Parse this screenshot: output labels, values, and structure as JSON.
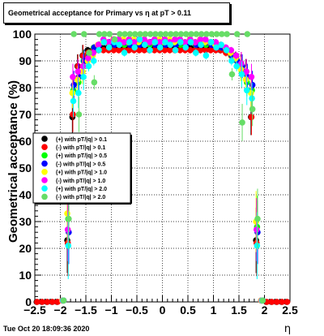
{
  "title_box": {
    "text": "Geometrical acceptance for Primary vs   η  at pT > 0.11"
  },
  "footer": {
    "timestamp": "Tue Oct 20 18:09:36 2020"
  },
  "chart_data": {
    "type": "scatter",
    "xlabel": "η",
    "ylabel": "Geometrical acceptance (%)",
    "xlim": [
      -2.5,
      2.5
    ],
    "ylim": [
      0,
      100
    ],
    "xticks": [
      "−2.5",
      "−2",
      "−1.5",
      "−1",
      "−0.5",
      "0",
      "0.5",
      "1",
      "1.5",
      "2",
      "2.5"
    ],
    "yticks": [
      "0",
      "10",
      "20",
      "30",
      "40",
      "50",
      "60",
      "70",
      "80",
      "90",
      "100"
    ],
    "grid": true,
    "legend_position": "left-middle",
    "series": [
      {
        "name": "(+) with pT/|q| > 0.1",
        "color": "#000000",
        "x": [
          -2.45,
          -2.35,
          -2.25,
          -2.15,
          -2.05,
          -1.95,
          -1.85,
          -1.75,
          -1.65,
          -1.55,
          -1.45,
          -1.35,
          -1.25,
          -1.15,
          -1.05,
          -0.95,
          -0.85,
          -0.75,
          -0.65,
          -0.55,
          -0.45,
          -0.35,
          -0.25,
          -0.15,
          -0.05,
          0.05,
          0.15,
          0.25,
          0.35,
          0.45,
          0.55,
          0.65,
          0.75,
          0.85,
          0.95,
          1.05,
          1.15,
          1.25,
          1.35,
          1.45,
          1.55,
          1.65,
          1.75,
          1.85,
          1.95,
          2.05,
          2.15,
          2.25,
          2.35,
          2.45
        ],
        "y": [
          0,
          0,
          0,
          0,
          0,
          0.5,
          23,
          69,
          88,
          92,
          94,
          94,
          95,
          95,
          95,
          95,
          95,
          95,
          95,
          95,
          95,
          95,
          95,
          95,
          95,
          95,
          95,
          95,
          95,
          95,
          95,
          95,
          95,
          95,
          95,
          95,
          94,
          94,
          93,
          92,
          88,
          86,
          69,
          23,
          0.5,
          0,
          0,
          0,
          0,
          0
        ]
      },
      {
        "name": "(-) with pT/|q| > 0.1",
        "color": "#ff0000",
        "x": [
          -2.45,
          -2.35,
          -2.25,
          -2.15,
          -2.05,
          -1.95,
          -1.85,
          -1.75,
          -1.65,
          -1.55,
          -1.45,
          -1.35,
          -1.25,
          -1.15,
          -1.05,
          -0.95,
          -0.85,
          -0.75,
          -0.65,
          -0.55,
          -0.45,
          -0.35,
          -0.25,
          -0.15,
          -0.05,
          0.05,
          0.15,
          0.25,
          0.35,
          0.45,
          0.55,
          0.65,
          0.75,
          0.85,
          0.95,
          1.05,
          1.15,
          1.25,
          1.35,
          1.45,
          1.55,
          1.65,
          1.75,
          1.85,
          1.95,
          2.05,
          2.15,
          2.25,
          2.35,
          2.45
        ],
        "y": [
          0,
          0,
          0,
          0,
          0,
          0.5,
          22,
          70,
          88,
          92,
          93,
          94,
          94,
          94,
          94,
          94,
          94,
          94,
          94,
          94,
          94,
          94,
          94,
          94,
          94,
          94,
          94,
          94,
          94,
          94,
          94,
          94,
          94,
          94,
          94,
          94,
          94,
          93,
          92,
          91,
          89,
          86,
          69,
          22,
          0.5,
          0,
          0,
          0,
          0,
          0
        ]
      },
      {
        "name": "(+) with pT/|q| > 0.5",
        "color": "#00ff00",
        "x": [
          -1.95,
          -1.85,
          -1.75,
          -1.65,
          -1.55,
          -1.45,
          -1.35,
          -1.25,
          -1.15,
          -1.05,
          -0.95,
          -0.85,
          -0.75,
          -0.65,
          -0.55,
          -0.45,
          -0.35,
          -0.25,
          -0.15,
          -0.05,
          0.05,
          0.15,
          0.25,
          0.35,
          0.45,
          0.55,
          0.65,
          0.75,
          0.85,
          0.95,
          1.05,
          1.15,
          1.25,
          1.35,
          1.45,
          1.55,
          1.65,
          1.75,
          1.85,
          1.95
        ],
        "y": [
          0.5,
          31,
          79,
          82,
          90,
          92,
          95,
          96,
          97,
          97,
          97,
          97,
          96,
          97,
          96,
          97,
          97,
          96,
          97,
          96,
          97,
          96,
          97,
          96,
          96,
          97,
          96,
          97,
          96,
          97,
          96,
          95,
          94,
          92,
          90,
          86,
          82,
          79,
          28,
          0.5
        ]
      },
      {
        "name": "(-) with pT/|q| > 0.5",
        "color": "#0000ff",
        "x": [
          -1.95,
          -1.85,
          -1.75,
          -1.65,
          -1.55,
          -1.45,
          -1.35,
          -1.25,
          -1.15,
          -1.05,
          -0.95,
          -0.85,
          -0.75,
          -0.65,
          -0.55,
          -0.45,
          -0.35,
          -0.25,
          -0.15,
          -0.05,
          0.05,
          0.15,
          0.25,
          0.35,
          0.45,
          0.55,
          0.65,
          0.75,
          0.85,
          0.95,
          1.05,
          1.15,
          1.25,
          1.35,
          1.45,
          1.55,
          1.65,
          1.75,
          1.85,
          1.95
        ],
        "y": [
          0.5,
          26,
          81,
          84,
          90,
          92,
          95,
          96,
          97,
          97,
          96,
          97,
          97,
          96,
          97,
          96,
          97,
          97,
          96,
          97,
          96,
          97,
          96,
          97,
          96,
          97,
          96,
          96,
          97,
          96,
          95,
          95,
          94,
          92,
          90,
          88,
          84,
          81,
          26,
          0.5
        ]
      },
      {
        "name": "(+) with pT/|q| > 1.0",
        "color": "#ffff00",
        "x": [
          -1.95,
          -1.85,
          -1.75,
          -1.65,
          -1.55,
          -1.45,
          -1.35,
          -1.25,
          -1.15,
          -1.05,
          -0.95,
          -0.85,
          -0.75,
          -0.65,
          -0.55,
          -0.45,
          -0.35,
          -0.25,
          -0.15,
          -0.05,
          0.05,
          0.15,
          0.25,
          0.35,
          0.45,
          0.55,
          0.65,
          0.75,
          0.85,
          0.95,
          1.05,
          1.15,
          1.25,
          1.35,
          1.45,
          1.55,
          1.65,
          1.75,
          1.85,
          1.95
        ],
        "y": [
          0.5,
          33,
          78,
          83,
          86,
          90,
          92,
          96,
          97,
          97,
          98,
          97,
          98,
          97,
          98,
          97,
          98,
          97,
          97,
          98,
          97,
          98,
          97,
          98,
          97,
          98,
          97,
          98,
          97,
          97,
          96,
          96,
          95,
          93,
          91,
          87,
          83,
          78,
          30,
          0.5
        ]
      },
      {
        "name": "(-) with pT/|q| > 1.0",
        "color": "#ff00ff",
        "x": [
          -1.95,
          -1.85,
          -1.75,
          -1.65,
          -1.55,
          -1.45,
          -1.35,
          -1.25,
          -1.15,
          -1.05,
          -0.95,
          -0.85,
          -0.75,
          -0.65,
          -0.55,
          -0.45,
          -0.35,
          -0.25,
          -0.15,
          -0.05,
          0.05,
          0.15,
          0.25,
          0.35,
          0.45,
          0.55,
          0.65,
          0.75,
          0.85,
          0.95,
          1.05,
          1.15,
          1.25,
          1.35,
          1.45,
          1.55,
          1.65,
          1.75,
          1.85,
          1.95
        ],
        "y": [
          0.5,
          27,
          84,
          86,
          88,
          91,
          93,
          96,
          98,
          97,
          98,
          98,
          97,
          98,
          97,
          98,
          98,
          97,
          98,
          97,
          98,
          97,
          98,
          98,
          97,
          98,
          97,
          98,
          98,
          97,
          97,
          96,
          95,
          94,
          92,
          89,
          86,
          84,
          27,
          0.5
        ]
      },
      {
        "name": "(+) with pT/|q| > 2.0",
        "color": "#00ffff",
        "x": [
          -1.95,
          -1.85,
          -1.75,
          -1.65,
          -1.55,
          -1.45,
          -1.35,
          -1.25,
          -1.15,
          -1.05,
          -0.95,
          -0.85,
          -0.75,
          -0.65,
          -0.55,
          -0.45,
          -0.35,
          -0.25,
          -0.15,
          -0.05,
          0.05,
          0.15,
          0.25,
          0.35,
          0.45,
          0.55,
          0.65,
          0.75,
          0.85,
          0.95,
          1.05,
          1.15,
          1.25,
          1.35,
          1.45,
          1.55,
          1.65,
          1.75,
          1.85,
          1.95
        ],
        "y": [
          0.5,
          21,
          75,
          78,
          84,
          88,
          90,
          94,
          97,
          95,
          97,
          96,
          93,
          97,
          95,
          98,
          96,
          94,
          97,
          95,
          97,
          96,
          94,
          97,
          95,
          97,
          93,
          96,
          92,
          97,
          95,
          96,
          94,
          90,
          88,
          85,
          79,
          76,
          21,
          0.5
        ]
      },
      {
        "name": "(-) with pT/|q| > 2.0",
        "color": "#66dd66",
        "x": [
          -1.95,
          -1.85,
          -1.75,
          -1.65,
          -1.55,
          -1.45,
          -1.35,
          -1.25,
          -1.15,
          -1.05,
          -0.95,
          -0.85,
          -0.75,
          -0.65,
          -0.55,
          -0.45,
          -0.35,
          -0.25,
          -0.15,
          -0.05,
          0.05,
          0.15,
          0.25,
          0.35,
          0.45,
          0.55,
          0.65,
          0.75,
          0.85,
          0.95,
          1.05,
          1.15,
          1.25,
          1.35,
          1.45,
          1.55,
          1.65,
          1.75,
          1.85,
          1.95
        ],
        "y": [
          0.5,
          31,
          100,
          70,
          100,
          93,
          82,
          100,
          100,
          100,
          98,
          100,
          100,
          100,
          100,
          100,
          100,
          100,
          100,
          100,
          100,
          100,
          100,
          100,
          100,
          100,
          100,
          100,
          100,
          100,
          100,
          100,
          100,
          85,
          100,
          67,
          100,
          72,
          31,
          0.5
        ]
      }
    ]
  }
}
